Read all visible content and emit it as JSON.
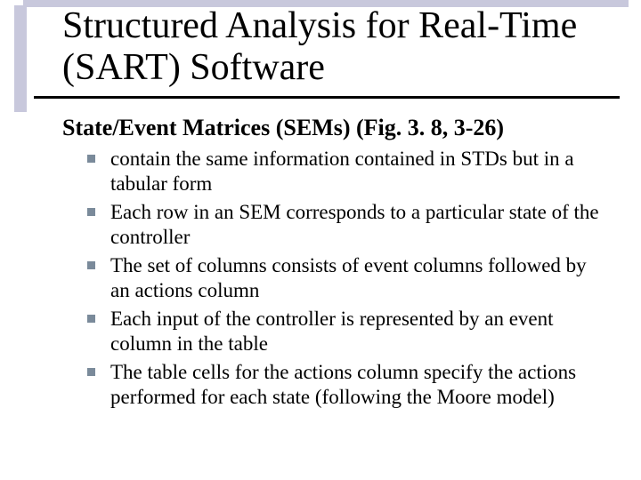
{
  "slide": {
    "title": "Structured Analysis for Real-Time (SART) Software",
    "subheading": "State/Event Matrices (SEMs) (Fig. 3. 8, 3-26)",
    "bullets": [
      "contain the same information contained in STDs but in a tabular form",
      "Each row in an SEM corresponds to a particular state of the controller",
      "The set of columns consists of event columns followed by an actions column",
      "Each input of the controller is represented by an event column in the table",
      "The table cells for the actions column specify the actions performed for each state (following the Moore model)"
    ]
  },
  "style": {
    "background_color": "#ffffff",
    "title_fontsize": 42,
    "title_color": "#000000",
    "title_underline_color": "#000000",
    "title_shadow_color": "#c8c8dc",
    "subheading_fontsize": 26,
    "subheading_weight": "bold",
    "body_fontsize": 23,
    "body_color": "#000000",
    "bullet_marker_color": "#7a8a9a",
    "bullet_marker_size": 9,
    "font_family": "Times New Roman"
  }
}
